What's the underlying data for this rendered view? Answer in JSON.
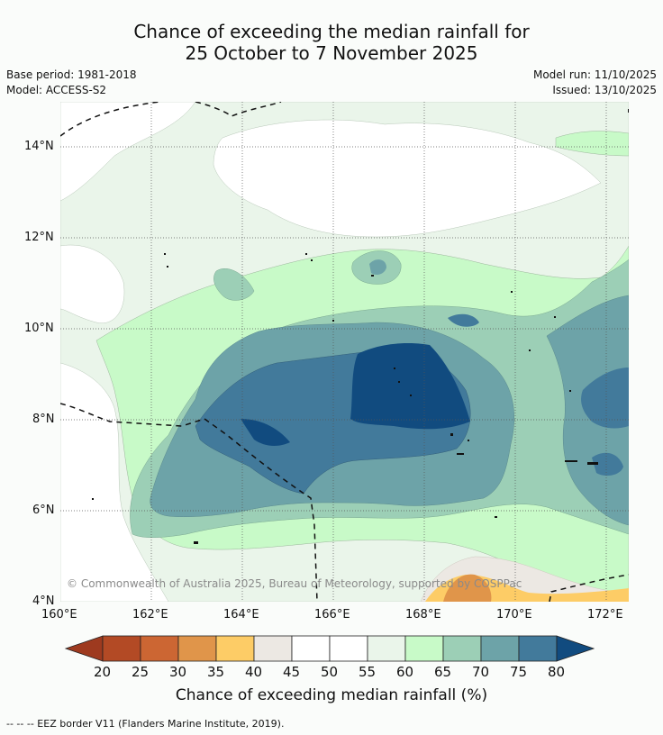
{
  "title_line1": "Chance of exceeding the median rainfall for",
  "title_line2": "25 October to 7 November 2025",
  "meta": {
    "base_period": "Base period: 1981-2018",
    "model": "Model: ACCESS-S2",
    "model_run": "Model run: 11/10/2025",
    "issued": "Issued: 13/10/2025"
  },
  "map": {
    "lat_labels": [
      "14°N",
      "12°N",
      "10°N",
      "8°N",
      "6°N",
      "4°N"
    ],
    "lon_labels": [
      "160°E",
      "162°E",
      "164°E",
      "166°E",
      "168°E",
      "170°E",
      "172°E"
    ],
    "lat_range": [
      4,
      15
    ],
    "lon_range": [
      160,
      172.5
    ],
    "copyright": "© Commonwealth of Australia 2025, Bureau of Meteorology, supported by COSPPac"
  },
  "colorbar": {
    "ticks": [
      "20",
      "25",
      "30",
      "35",
      "40",
      "45",
      "50",
      "55",
      "60",
      "65",
      "70",
      "75",
      "80"
    ],
    "colors": [
      "#9e3a1f",
      "#b34a25",
      "#cc6633",
      "#e0954a",
      "#fdcc66",
      "#ece8e3",
      "#ffffff",
      "#ffffff",
      "#eaf5ea",
      "#c8fac8",
      "#9ccfb6",
      "#6da3a8",
      "#427a9b",
      "#114b7f"
    ],
    "label": "Chance of exceeding median rainfall (%)"
  },
  "footer": "--  --  -- EEZ border V11 (Flanders Marine Institute, 2019)."
}
